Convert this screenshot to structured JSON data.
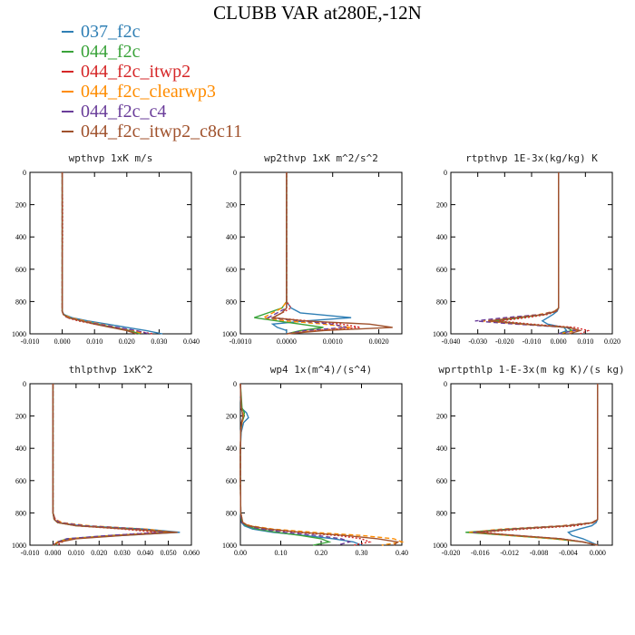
{
  "title": "CLUBB VAR at280E,-12N",
  "legend": [
    {
      "name": "037_f2c",
      "color": "#2f7fb5",
      "dash": "solid"
    },
    {
      "name": "044_f2c",
      "color": "#3aa33a",
      "dash": "solid"
    },
    {
      "name": "044_f2c_itwp2",
      "color": "#d62728",
      "dash": "dotted"
    },
    {
      "name": "044_f2c_clearwp3",
      "color": "#ff8c00",
      "dash": "dashed"
    },
    {
      "name": "044_f2c_c4",
      "color": "#6a3d9a",
      "dash": "dashed"
    },
    {
      "name": "044_f2c_itwp2_c8c11",
      "color": "#a0522d",
      "dash": "solid"
    }
  ],
  "chart_data": [
    {
      "type": "line",
      "title": "wpthvp  1xK m/s",
      "xlim": [
        -0.01,
        0.04
      ],
      "ylim": [
        1000,
        0
      ],
      "xticks": [
        "-0.010",
        "0.000",
        "0.010",
        "0.020",
        "0.030",
        "0.040"
      ],
      "yticks": [
        "0",
        "200",
        "400",
        "600",
        "800",
        "1000"
      ],
      "y": [
        0,
        200,
        400,
        600,
        800,
        860,
        880,
        900,
        920,
        940,
        960,
        980,
        1000
      ],
      "series": [
        {
          "values": [
            0.0,
            0.0,
            0.0,
            0.0,
            0.0,
            0.0,
            0.0005,
            0.003,
            0.008,
            0.014,
            0.02,
            0.026,
            0.031
          ]
        },
        {
          "values": [
            0.0,
            0.0,
            0.0,
            0.0,
            0.0,
            0.0,
            0.0004,
            0.002,
            0.006,
            0.011,
            0.016,
            0.021,
            0.024
          ]
        },
        {
          "values": [
            0.0,
            0.0001,
            0.0001,
            0.0,
            0.0,
            0.0,
            0.0003,
            0.0015,
            0.005,
            0.01,
            0.016,
            0.022,
            0.028
          ]
        },
        {
          "values": [
            0.0,
            0.0,
            0.0,
            0.0,
            0.0,
            0.0,
            0.0004,
            0.0025,
            0.007,
            0.012,
            0.017,
            0.022,
            0.025
          ]
        },
        {
          "values": [
            0.0,
            0.0,
            0.0,
            0.0,
            0.0,
            0.0,
            0.0004,
            0.0018,
            0.006,
            0.011,
            0.017,
            0.023,
            0.027
          ]
        },
        {
          "values": [
            0.0,
            0.0,
            0.0,
            0.0,
            0.0,
            0.0,
            0.0003,
            0.0018,
            0.006,
            0.01,
            0.015,
            0.02,
            0.023
          ]
        }
      ]
    },
    {
      "type": "line",
      "title": "wp2thvp  1xK m^2/s^2",
      "xlim": [
        -0.001,
        0.0025
      ],
      "ylim": [
        1000,
        0
      ],
      "xticks": [
        "-0.0010",
        "0.0000",
        "0.0010",
        "0.0020"
      ],
      "yticks": [
        "0",
        "200",
        "400",
        "600",
        "800",
        "1000"
      ],
      "y": [
        0,
        200,
        400,
        600,
        800,
        840,
        870,
        900,
        920,
        940,
        960,
        980,
        1000
      ],
      "series": [
        {
          "values": [
            0.0,
            0.0,
            0.0,
            0.0,
            0.0,
            0.0001,
            0.0003,
            0.0014,
            0.0004,
            -0.0003,
            -0.0002,
            0.0,
            0.0
          ]
        },
        {
          "values": [
            0.0,
            0.0,
            0.0,
            0.0,
            0.0,
            -0.0001,
            -0.0004,
            -0.0007,
            -0.0002,
            0.0003,
            0.0008,
            0.0003,
            0.0
          ]
        },
        {
          "values": [
            0.0,
            0.0,
            0.0,
            0.0,
            0.0,
            0.0001,
            -0.0001,
            -0.0003,
            0.0005,
            0.0012,
            0.0016,
            0.0006,
            0.0
          ]
        },
        {
          "values": [
            0.0,
            0.0,
            0.0,
            0.0,
            0.0,
            -0.0001,
            -0.0003,
            -0.0005,
            0.0,
            0.0008,
            0.0014,
            0.0005,
            0.0
          ]
        },
        {
          "values": [
            0.0,
            0.0,
            0.0,
            0.0,
            0.0,
            0.0,
            -0.0002,
            -0.0004,
            0.0003,
            0.001,
            0.0013,
            0.0004,
            0.0
          ]
        },
        {
          "values": [
            0.0,
            0.0,
            0.0,
            0.0,
            0.0,
            0.0,
            -0.0001,
            -0.0003,
            0.0004,
            0.0018,
            0.0023,
            0.0008,
            0.0
          ]
        }
      ]
    },
    {
      "type": "line",
      "title": "rtpthvp  1E-3x(kg/kg) K",
      "xlim": [
        -0.04,
        0.02
      ],
      "ylim": [
        1000,
        0
      ],
      "xticks": [
        "-0.040",
        "-0.030",
        "-0.020",
        "-0.010",
        "0.000",
        "0.010",
        "0.020"
      ],
      "yticks": [
        "0",
        "200",
        "400",
        "600",
        "800",
        "1000"
      ],
      "y": [
        0,
        200,
        400,
        600,
        800,
        840,
        860,
        880,
        900,
        920,
        940,
        960,
        980,
        1000
      ],
      "series": [
        {
          "values": [
            0.0,
            0.0,
            0.0,
            0.0,
            0.0,
            0.0,
            -0.0005,
            -0.002,
            -0.004,
            -0.006,
            -0.004,
            0.002,
            0.003,
            0.0
          ]
        },
        {
          "values": [
            0.0,
            0.0,
            0.0,
            0.0,
            0.0,
            0.0,
            -0.001,
            -0.005,
            -0.014,
            -0.024,
            -0.012,
            0.003,
            0.005,
            0.0
          ]
        },
        {
          "values": [
            0.0,
            0.0,
            0.0,
            0.0,
            0.0,
            0.0,
            -0.0008,
            -0.004,
            -0.012,
            -0.022,
            -0.01,
            0.006,
            0.011,
            0.008
          ]
        },
        {
          "values": [
            0.0,
            0.0,
            0.0,
            0.0,
            0.0,
            0.0,
            -0.0015,
            -0.007,
            -0.018,
            -0.028,
            -0.014,
            0.004,
            0.007,
            0.0
          ]
        },
        {
          "values": [
            0.0,
            0.0,
            0.0,
            0.0,
            0.0,
            0.0,
            -0.0012,
            -0.006,
            -0.02,
            -0.031,
            -0.016,
            0.003,
            0.006,
            0.0
          ]
        },
        {
          "values": [
            0.0,
            0.0,
            0.0,
            0.0,
            0.0,
            0.0,
            -0.001,
            -0.005,
            -0.016,
            -0.026,
            -0.013,
            0.004,
            0.008,
            0.004
          ]
        }
      ]
    },
    {
      "type": "line",
      "title": "thlpthvp  1xK^2",
      "xlim": [
        -0.01,
        0.06
      ],
      "ylim": [
        1000,
        0
      ],
      "xticks": [
        "-0.010",
        "0.000",
        "0.010",
        "0.020",
        "0.030",
        "0.040",
        "0.050",
        "0.060"
      ],
      "yticks": [
        "0",
        "200",
        "400",
        "600",
        "800",
        "1000"
      ],
      "y": [
        0,
        200,
        400,
        600,
        800,
        840,
        860,
        880,
        900,
        920,
        940,
        960,
        980,
        1000
      ],
      "series": [
        {
          "values": [
            0.0,
            0.0,
            0.0,
            0.0,
            0.0,
            0.0005,
            0.002,
            0.012,
            0.04,
            0.055,
            0.03,
            0.008,
            0.002,
            0.001
          ]
        },
        {
          "values": [
            0.0,
            0.0,
            0.0,
            0.0,
            0.0,
            0.0005,
            0.002,
            0.01,
            0.035,
            0.05,
            0.025,
            0.006,
            0.002,
            0.001
          ]
        },
        {
          "values": [
            0.0,
            0.0,
            0.0,
            0.0,
            0.0,
            0.001,
            0.003,
            0.01,
            0.03,
            0.045,
            0.025,
            0.008,
            0.004,
            0.002
          ]
        },
        {
          "values": [
            0.0,
            0.0,
            0.0,
            0.0,
            0.0,
            0.001,
            0.004,
            0.016,
            0.04,
            0.052,
            0.028,
            0.007,
            0.002,
            0.0
          ]
        },
        {
          "values": [
            0.0,
            0.0,
            0.0,
            0.0,
            0.0,
            0.0008,
            0.003,
            0.014,
            0.038,
            0.048,
            0.024,
            0.006,
            0.002,
            0.0
          ]
        },
        {
          "values": [
            0.0,
            0.0,
            0.0,
            0.0,
            0.0,
            0.0005,
            0.002,
            0.01,
            0.032,
            0.054,
            0.03,
            0.01,
            0.003,
            0.0
          ]
        }
      ]
    },
    {
      "type": "line",
      "title": "wp4  1x(m^4)/(s^4)",
      "xlim": [
        0.0,
        0.4
      ],
      "ylim": [
        1000,
        0
      ],
      "xticks": [
        "0.00",
        "0.10",
        "0.20",
        "0.30",
        "0.40"
      ],
      "yticks": [
        "0",
        "200",
        "400",
        "600",
        "800",
        "1000"
      ],
      "y": [
        0,
        150,
        180,
        210,
        240,
        300,
        400,
        600,
        800,
        860,
        880,
        900,
        920,
        940,
        960,
        980,
        1000
      ],
      "series": [
        {
          "values": [
            0.0,
            0.002,
            0.015,
            0.02,
            0.008,
            0.002,
            0.0,
            0.0,
            0.001,
            0.003,
            0.01,
            0.03,
            0.08,
            0.16,
            0.23,
            0.28,
            0.3
          ]
        },
        {
          "values": [
            0.0,
            0.004,
            0.01,
            0.008,
            0.004,
            0.001,
            0.0,
            0.0,
            0.001,
            0.004,
            0.015,
            0.04,
            0.09,
            0.15,
            0.2,
            0.22,
            0.18
          ]
        },
        {
          "values": [
            0.0,
            0.002,
            0.006,
            0.006,
            0.004,
            0.001,
            0.0,
            0.0,
            0.001,
            0.005,
            0.02,
            0.06,
            0.14,
            0.24,
            0.3,
            0.32,
            0.28
          ]
        },
        {
          "values": [
            0.0,
            0.002,
            0.006,
            0.008,
            0.004,
            0.001,
            0.0,
            0.0,
            0.001,
            0.006,
            0.025,
            0.08,
            0.18,
            0.3,
            0.38,
            0.4,
            0.35
          ]
        },
        {
          "values": [
            0.0,
            0.002,
            0.005,
            0.006,
            0.003,
            0.001,
            0.0,
            0.0,
            0.001,
            0.004,
            0.018,
            0.05,
            0.11,
            0.19,
            0.25,
            0.27,
            0.24
          ]
        },
        {
          "values": [
            0.0,
            0.002,
            0.005,
            0.006,
            0.003,
            0.001,
            0.0,
            0.0,
            0.001,
            0.006,
            0.02,
            0.07,
            0.15,
            0.26,
            0.34,
            0.39,
            0.38
          ]
        }
      ]
    },
    {
      "type": "line",
      "title": "wprtpthlp  1-E-3x(m kg K)/(s kg)",
      "xlim": [
        -0.02,
        0.002
      ],
      "ylim": [
        1000,
        0
      ],
      "xticks": [
        "-0.020",
        "-0.016",
        "-0.012",
        "-0.008",
        "-0.004",
        "0.000"
      ],
      "yticks": [
        "0",
        "200",
        "400",
        "600",
        "800",
        "1000"
      ],
      "y": [
        0,
        200,
        400,
        600,
        800,
        840,
        860,
        880,
        900,
        920,
        940,
        960,
        980,
        1000
      ],
      "series": [
        {
          "values": [
            0.0,
            0.0,
            0.0,
            0.0,
            0.0,
            0.0,
            -0.0002,
            -0.0008,
            -0.0025,
            -0.004,
            -0.0035,
            -0.002,
            -0.001,
            0.0
          ]
        },
        {
          "values": [
            0.0,
            0.0,
            0.0,
            0.0,
            0.0,
            0.0,
            -0.0006,
            -0.004,
            -0.012,
            -0.018,
            -0.012,
            -0.006,
            -0.002,
            0.0
          ]
        },
        {
          "values": [
            0.0,
            0.0,
            0.0,
            0.0,
            0.0,
            0.0,
            -0.0005,
            -0.003,
            -0.01,
            -0.016,
            -0.011,
            -0.005,
            -0.002,
            0.0
          ]
        },
        {
          "values": [
            0.0,
            0.0,
            0.0,
            0.0,
            0.0,
            0.0,
            -0.0008,
            -0.005,
            -0.013,
            -0.0175,
            -0.012,
            -0.006,
            -0.002,
            0.0
          ]
        },
        {
          "values": [
            0.0,
            0.0,
            0.0,
            0.0,
            0.0,
            0.0,
            -0.0007,
            -0.0045,
            -0.012,
            -0.017,
            -0.011,
            -0.005,
            -0.002,
            0.0
          ]
        },
        {
          "values": [
            0.0,
            0.0,
            0.0,
            0.0,
            0.0,
            0.0,
            -0.0006,
            -0.004,
            -0.011,
            -0.0165,
            -0.011,
            -0.005,
            -0.002,
            0.0
          ]
        }
      ]
    }
  ]
}
